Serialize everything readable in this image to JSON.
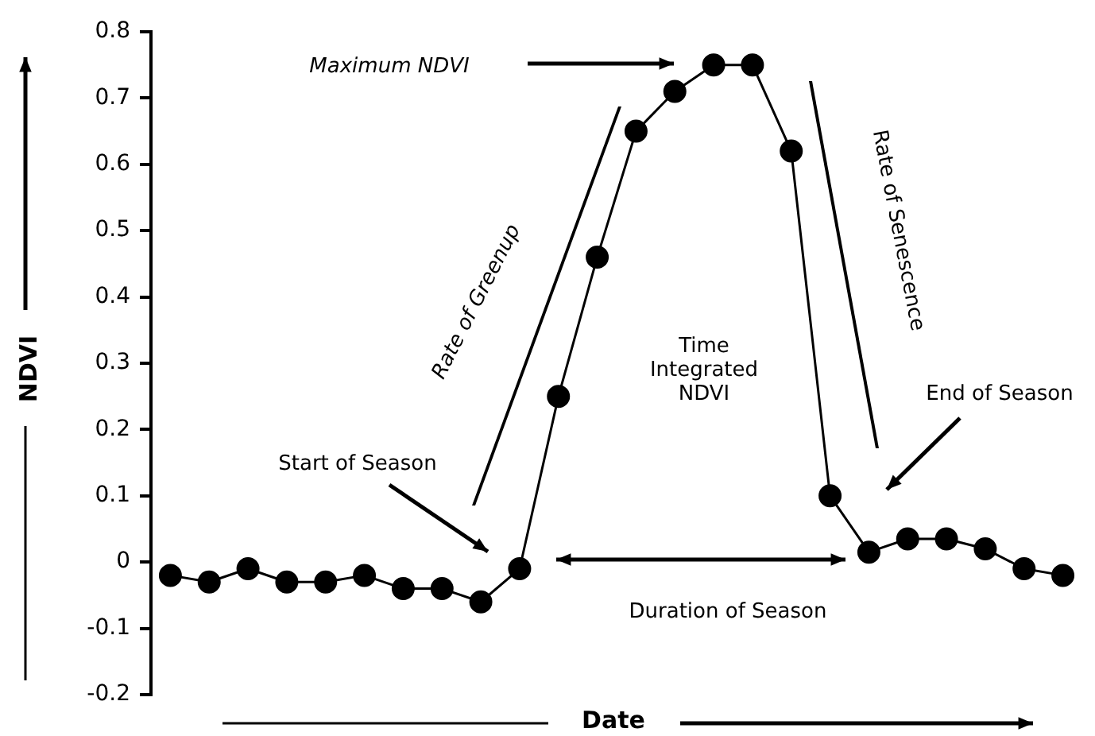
{
  "chart_data": {
    "type": "line",
    "xlabel": "Date",
    "ylabel": "NDVI",
    "categories": [
      null,
      null,
      null,
      null,
      null,
      null,
      null,
      null,
      null,
      null,
      null,
      null,
      null,
      null,
      null,
      null,
      null,
      null,
      null,
      null,
      null,
      null,
      null,
      null
    ],
    "series": [
      {
        "color": "#000000",
        "values": [
          -0.02,
          -0.03,
          -0.01,
          -0.03,
          -0.03,
          -0.02,
          -0.04,
          -0.04,
          -0.06,
          -0.01,
          0.25,
          0.46,
          0.65,
          0.71,
          0.75,
          0.75,
          0.62,
          0.1,
          0.015,
          0.035,
          0.035,
          0.02,
          -0.01,
          -0.02
        ]
      }
    ],
    "ylim": [
      -0.2,
      0.8
    ],
    "yticks": [
      -0.2,
      -0.1,
      0,
      0.1,
      0.2,
      0.3,
      0.4,
      0.5,
      0.6,
      0.7,
      0.8
    ],
    "tick_labels": "y",
    "grid": false,
    "legend": false,
    "marker": "circle",
    "line_style": "solid",
    "annotations": [
      "Maximum NDVI",
      "Rate of Greenup",
      "Start of Season",
      "Time Integrated NDVI",
      "Rate of Senescence",
      "End of Season",
      "Duration of Season"
    ]
  }
}
